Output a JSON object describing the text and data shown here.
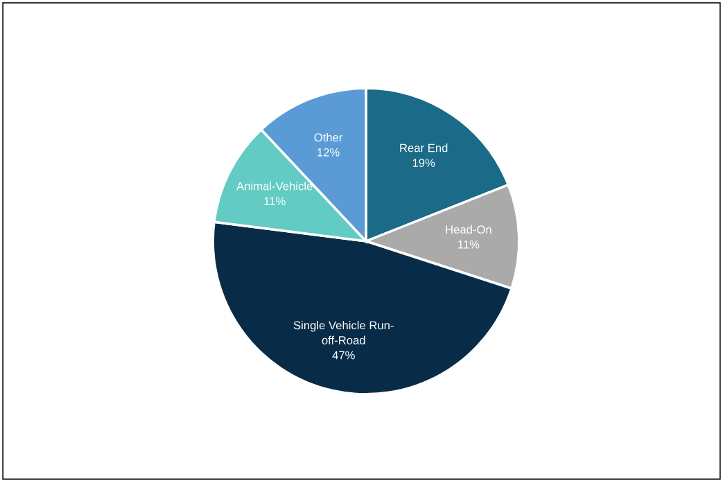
{
  "chart_data": {
    "type": "pie",
    "categories": [
      "Rear End",
      "Head-On",
      "Single Vehicle Run-\noff-Road",
      "Animal-Vehicle",
      "Other"
    ],
    "values": [
      19,
      11,
      47,
      11,
      12
    ],
    "colors": [
      "#1b6a87",
      "#aaaaaa",
      "#082c47",
      "#62cbc3",
      "#5b9bd5"
    ],
    "value_labels": [
      "19%",
      "11%",
      "47%",
      "11%",
      "12%"
    ]
  }
}
